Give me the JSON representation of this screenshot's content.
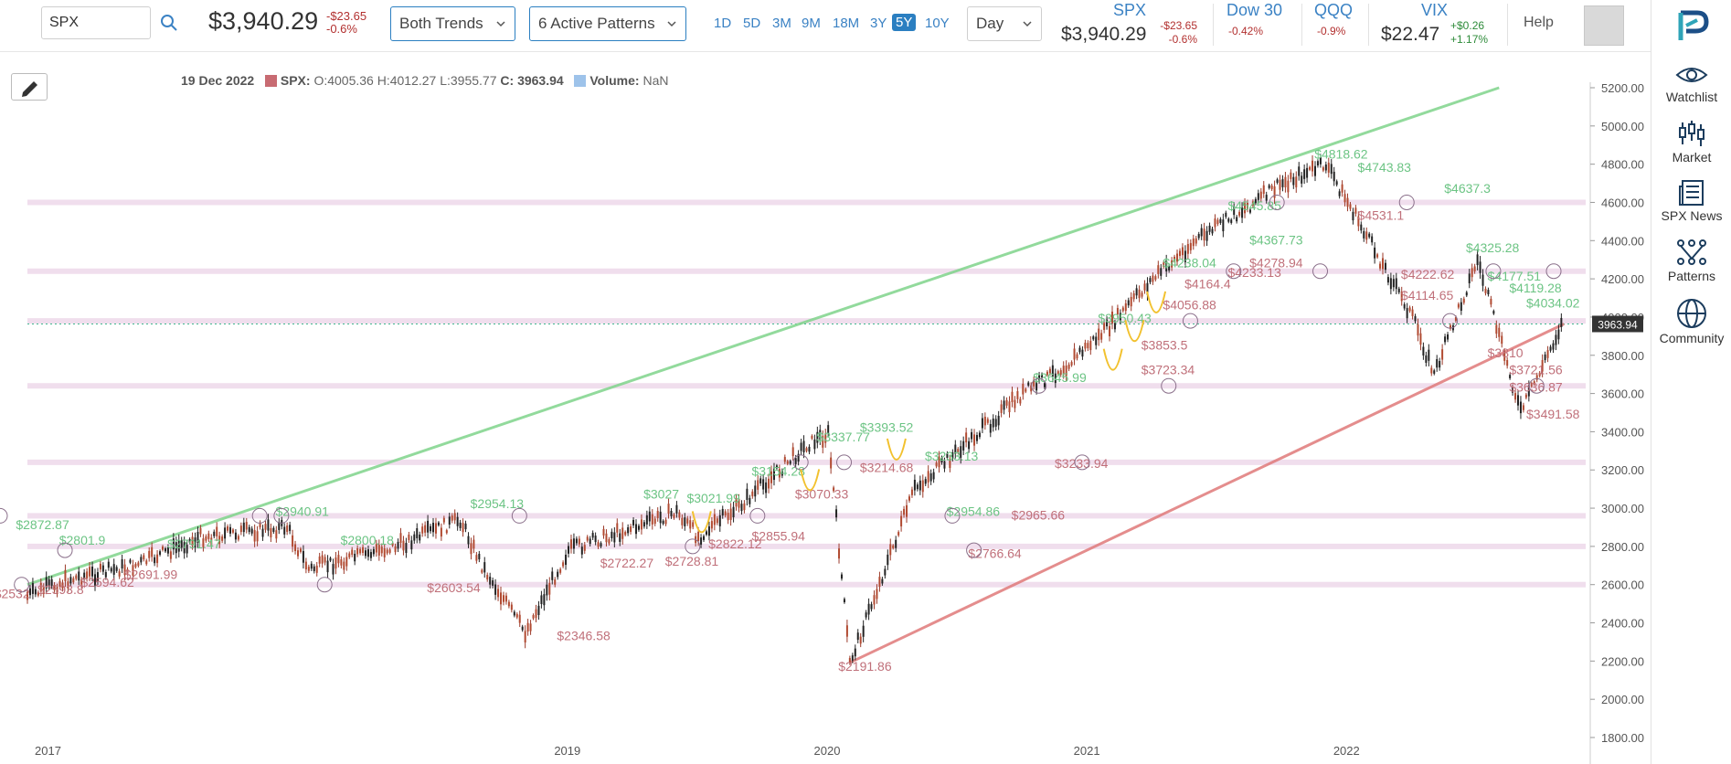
{
  "search": {
    "value": "SPX"
  },
  "header": {
    "price": "$3,940.29",
    "change_abs": "-$23.65",
    "change_pct": "-0.6%",
    "trend_dropdown": "Both Trends",
    "patterns_dropdown": "6 Active Patterns",
    "timeframes": [
      "1D",
      "5D",
      "3M",
      "9M",
      "18M",
      "3Y",
      "5Y",
      "10Y"
    ],
    "active_timeframe": "5Y",
    "interval_dropdown": "Day",
    "help": "Help"
  },
  "tickers": [
    {
      "name": "SPX",
      "value": "$3,940.29",
      "chg1": "-$23.65",
      "chg2": "-0.6%",
      "color": "#b2302f"
    },
    {
      "name": "Dow 30",
      "value": "",
      "chg1": "-0.42%",
      "chg2": "",
      "color": "#b2302f"
    },
    {
      "name": "QQQ",
      "value": "",
      "chg1": "-0.9%",
      "chg2": "",
      "color": "#b2302f"
    },
    {
      "name": "VIX",
      "value": "$22.47",
      "chg1": "+$0.26",
      "chg2": "+1.17%",
      "color": "#2e8b3a"
    }
  ],
  "sidebar": {
    "items": [
      {
        "label": "Watchlist",
        "icon": "eye-icon"
      },
      {
        "label": "Market",
        "icon": "candlestick-icon"
      },
      {
        "label": "SPX News",
        "icon": "news-icon"
      },
      {
        "label": "Patterns",
        "icon": "patterns-icon"
      },
      {
        "label": "Community",
        "icon": "globe-icon"
      }
    ]
  },
  "ohlc": {
    "date": "19 Dec 2022",
    "symbol": "SPX:",
    "o": "O:4005.36",
    "h": "H:4012.27",
    "l": "L:3955.77",
    "c": "C: 3963.94",
    "volume_label": "Volume:",
    "volume_value": "NaN",
    "price_color": "#c86b72",
    "volume_color": "#9ec3ea"
  },
  "chart_data": {
    "type": "line",
    "title": "",
    "xlabel": "",
    "ylabel": "",
    "ylim": [
      1800,
      5200
    ],
    "y_ticks": [
      "1800.00",
      "2000.00",
      "2200.00",
      "2400.00",
      "2600.00",
      "2800.00",
      "3000.00",
      "3200.00",
      "3400.00",
      "3600.00",
      "3800.00",
      "4000.00",
      "4200.00",
      "4400.00",
      "4600.00",
      "4800.00",
      "5000.00",
      "5200.00"
    ],
    "x_ticks": [
      "2017",
      "2019",
      "2020",
      "2021",
      "2022"
    ],
    "current_price_label": "3963.94",
    "series": [
      {
        "x": [
          "2017-01",
          "2017-03",
          "2017-06",
          "2017-09",
          "2018-01",
          "2018-02",
          "2018-06",
          "2018-09",
          "2018-10",
          "2018-12",
          "2019-02",
          "2019-05",
          "2019-07",
          "2019-08",
          "2019-10",
          "2020-01",
          "2020-02",
          "2020-03",
          "2020-06",
          "2020-09",
          "2020-11",
          "2021-01",
          "2021-03",
          "2021-05",
          "2021-07",
          "2021-09",
          "2021-11",
          "2022-01",
          "2022-03",
          "2022-05",
          "2022-06",
          "2022-08",
          "2022-10",
          "2022-12"
        ],
        "y": [
          2540,
          2630,
          2700,
          2850,
          2900,
          2680,
          2800,
          2940,
          2700,
          2350,
          2780,
          2900,
          2980,
          2850,
          3020,
          3330,
          3390,
          2190,
          3100,
          3400,
          3600,
          3750,
          3950,
          4200,
          4400,
          4550,
          4700,
          4800,
          4400,
          4000,
          3700,
          4300,
          3500,
          3990
        ]
      }
    ],
    "trendlines": [
      {
        "trend": "up",
        "from": [
          "2017-01",
          2600
        ],
        "to": [
          "2022-09",
          5200
        ],
        "color": "#7fd48b"
      },
      {
        "trend": "down",
        "from": [
          "2020-03",
          2191.86
        ],
        "to": [
          "2022-12",
          3963.94
        ],
        "color": "#e07a7a"
      }
    ],
    "level_bands": [
      2600,
      2800,
      2960,
      3240,
      3640,
      3980,
      4240,
      4600
    ],
    "labels_green": [
      "$2872.87",
      "$2801.9",
      "$2791.47",
      "$2940.91",
      "$2800.18",
      "$2954.13",
      "$3027",
      "$3021.99",
      "$3154.28",
      "$3337.77",
      "$3393.52",
      "$3233.13",
      "$2954.86",
      "$3645.99",
      "$3950.43",
      "$4238.04",
      "$4367.73",
      "$4545.85",
      "$4743.83",
      "$4818.62",
      "$4637.3",
      "$4325.28",
      "$4177.51",
      "$4119.28",
      "$4034.02"
    ],
    "labels_red": [
      "$2532",
      "$2593.8",
      "$2594.62",
      "$2691.99",
      "$2603.54",
      "$2346.58",
      "$2722.27",
      "$2728.81",
      "$2822.12",
      "$2855.94",
      "$3070.33",
      "$3214.68",
      "$2191.86",
      "$2766.64",
      "$2965.66",
      "$3233.94",
      "$3853.5",
      "$3723.34",
      "$4056.88",
      "$4164.4",
      "$4233.13",
      "$4278.94",
      "$4531.1",
      "$4222.62",
      "$4114.65",
      "$3810",
      "$3721.56",
      "$3636.87",
      "$3491.58"
    ]
  }
}
